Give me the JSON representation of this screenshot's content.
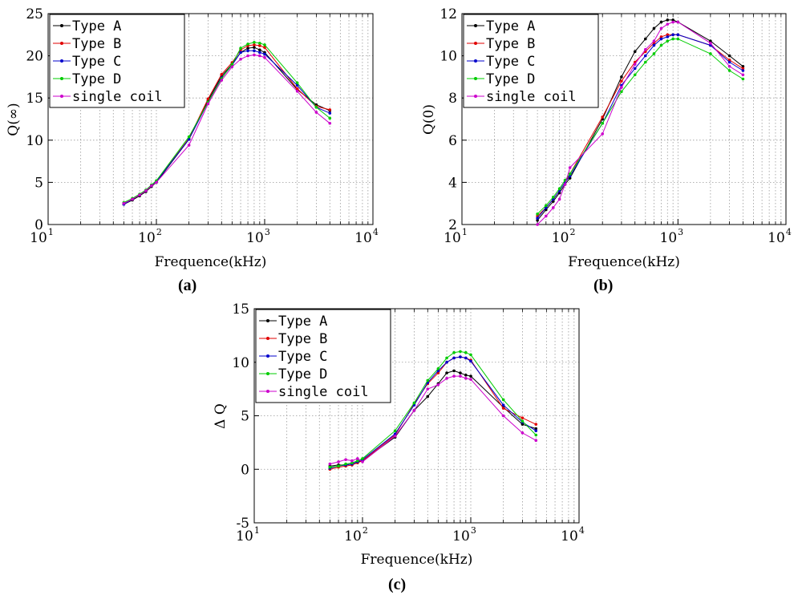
{
  "chart_data": [
    {
      "type": "line",
      "panel": "a",
      "caption": "(a)",
      "xlabel": "Frequence(kHz)",
      "ylabel": "Q(∞)",
      "xscale": "log",
      "xlim": [
        10,
        10000
      ],
      "ylim": [
        0,
        25
      ],
      "xticks": [
        {
          "base": "10",
          "exp": "1",
          "value": 10
        },
        {
          "base": "10",
          "exp": "2",
          "value": 100
        },
        {
          "base": "10",
          "exp": "3",
          "value": 1000
        },
        {
          "base": "10",
          "exp": "4",
          "value": 10000
        }
      ],
      "yticks": [
        "0",
        "5",
        "10",
        "15",
        "20",
        "25"
      ],
      "legend_position": "top-left",
      "x": [
        50,
        60,
        70,
        80,
        90,
        100,
        200,
        300,
        400,
        500,
        600,
        700,
        800,
        900,
        1000,
        2000,
        3000,
        4000
      ],
      "series": [
        {
          "name": "Type A",
          "color": "#000000",
          "values": [
            2.4,
            2.9,
            3.4,
            3.9,
            4.5,
            5.0,
            10.1,
            14.7,
            17.6,
            19.0,
            20.4,
            20.9,
            21.0,
            20.7,
            20.4,
            16.0,
            14.2,
            13.5
          ]
        },
        {
          "name": "Type B",
          "color": "#e00000",
          "values": [
            2.5,
            3.0,
            3.5,
            4.0,
            4.6,
            5.1,
            10.2,
            14.9,
            17.8,
            19.2,
            20.7,
            21.2,
            21.3,
            21.2,
            21.0,
            16.1,
            14.0,
            13.6
          ]
        },
        {
          "name": "Type C",
          "color": "#0000cc",
          "values": [
            2.4,
            3.0,
            3.5,
            4.0,
            4.6,
            5.1,
            10.1,
            14.5,
            17.4,
            18.9,
            20.4,
            20.6,
            20.6,
            20.4,
            20.2,
            16.5,
            13.9,
            13.2
          ]
        },
        {
          "name": "Type D",
          "color": "#00cc00",
          "values": [
            2.6,
            3.1,
            3.6,
            4.1,
            4.7,
            5.2,
            10.4,
            14.5,
            17.3,
            19.0,
            20.9,
            21.4,
            21.6,
            21.5,
            21.3,
            16.8,
            13.9,
            12.6
          ]
        },
        {
          "name": "single coil",
          "color": "#cc00cc",
          "values": [
            2.5,
            3.0,
            3.5,
            4.0,
            4.6,
            5.0,
            9.4,
            14.3,
            17.1,
            18.7,
            19.6,
            20.0,
            20.1,
            20.0,
            19.8,
            15.8,
            13.3,
            12.0
          ]
        }
      ]
    },
    {
      "type": "line",
      "panel": "b",
      "caption": "(b)",
      "xlabel": "Frequence(kHz)",
      "ylabel": "Q(0)",
      "xscale": "log",
      "xlim": [
        10,
        10000
      ],
      "ylim": [
        2,
        12
      ],
      "xticks": [
        {
          "base": "10",
          "exp": "1",
          "value": 10
        },
        {
          "base": "10",
          "exp": "2",
          "value": 100
        },
        {
          "base": "10",
          "exp": "3",
          "value": 1000
        },
        {
          "base": "10",
          "exp": "4",
          "value": 10000
        }
      ],
      "yticks": [
        "2",
        "4",
        "6",
        "8",
        "10",
        "12"
      ],
      "legend_position": "top-left",
      "x": [
        50,
        60,
        70,
        80,
        90,
        100,
        200,
        300,
        400,
        500,
        600,
        700,
        800,
        900,
        1000,
        2000,
        3000,
        4000
      ],
      "series": [
        {
          "name": "Type A",
          "color": "#000000",
          "values": [
            2.2,
            2.7,
            3.1,
            3.5,
            3.9,
            4.2,
            7.0,
            9.0,
            10.2,
            10.8,
            11.3,
            11.6,
            11.7,
            11.7,
            11.6,
            10.7,
            10.0,
            9.5
          ]
        },
        {
          "name": "Type B",
          "color": "#e00000",
          "values": [
            2.4,
            2.8,
            3.2,
            3.6,
            4.0,
            4.4,
            7.1,
            8.8,
            9.7,
            10.2,
            10.6,
            10.9,
            11.0,
            11.0,
            11.0,
            10.5,
            9.8,
            9.4
          ]
        },
        {
          "name": "Type C",
          "color": "#0000cc",
          "values": [
            2.3,
            2.8,
            3.2,
            3.6,
            4.0,
            4.3,
            6.8,
            8.6,
            9.4,
            10.0,
            10.5,
            10.8,
            10.9,
            11.0,
            11.0,
            10.5,
            9.7,
            9.3
          ]
        },
        {
          "name": "Type D",
          "color": "#00cc00",
          "values": [
            2.5,
            2.9,
            3.3,
            3.7,
            4.1,
            4.4,
            6.8,
            8.3,
            9.1,
            9.7,
            10.1,
            10.5,
            10.7,
            10.8,
            10.8,
            10.1,
            9.3,
            8.9
          ]
        },
        {
          "name": "single coil",
          "color": "#cc00cc",
          "values": [
            2.0,
            2.4,
            2.8,
            3.2,
            3.9,
            4.7,
            6.3,
            8.5,
            9.6,
            10.3,
            10.7,
            11.3,
            11.5,
            11.6,
            11.6,
            10.6,
            9.5,
            9.1
          ]
        }
      ]
    },
    {
      "type": "line",
      "panel": "c",
      "caption": "(c)",
      "xlabel": "Frequence(kHz)",
      "ylabel": "Δ Q",
      "xscale": "log",
      "xlim": [
        10,
        10000
      ],
      "ylim": [
        -5,
        15
      ],
      "xticks": [
        {
          "base": "10",
          "exp": "1",
          "value": 10
        },
        {
          "base": "10",
          "exp": "2",
          "value": 100
        },
        {
          "base": "10",
          "exp": "3",
          "value": 1000
        },
        {
          "base": "10",
          "exp": "4",
          "value": 10000
        }
      ],
      "yticks": [
        "-5",
        "0",
        "5",
        "10",
        "15"
      ],
      "legend_position": "top-left",
      "x": [
        50,
        60,
        70,
        80,
        90,
        100,
        200,
        300,
        400,
        500,
        600,
        700,
        800,
        900,
        1000,
        2000,
        3000,
        4000
      ],
      "series": [
        {
          "name": "Type A",
          "color": "#000000",
          "values": [
            0.3,
            0.4,
            0.4,
            0.5,
            0.7,
            0.8,
            3.0,
            5.5,
            6.8,
            8.0,
            9.0,
            9.2,
            9.0,
            8.8,
            8.7,
            5.8,
            4.2,
            3.8
          ]
        },
        {
          "name": "Type B",
          "color": "#e00000",
          "values": [
            0.0,
            0.2,
            0.3,
            0.4,
            0.6,
            0.8,
            3.2,
            6.1,
            8.0,
            9.0,
            10.0,
            10.4,
            10.5,
            10.4,
            10.2,
            5.7,
            4.8,
            4.2
          ]
        },
        {
          "name": "Type C",
          "color": "#0000cc",
          "values": [
            0.1,
            0.3,
            0.4,
            0.5,
            0.7,
            0.9,
            3.3,
            6.0,
            8.1,
            9.2,
            10.0,
            10.4,
            10.5,
            10.4,
            10.1,
            6.0,
            4.4,
            3.6
          ]
        },
        {
          "name": "Type D",
          "color": "#00cc00",
          "values": [
            0.2,
            0.3,
            0.5,
            0.6,
            0.8,
            1.0,
            3.6,
            6.2,
            8.3,
            9.4,
            10.4,
            10.9,
            11.0,
            10.9,
            10.7,
            6.5,
            4.5,
            3.2
          ]
        },
        {
          "name": "single coil",
          "color": "#cc00cc",
          "values": [
            0.5,
            0.7,
            0.9,
            0.8,
            1.0,
            0.7,
            3.1,
            5.5,
            7.5,
            7.9,
            8.5,
            8.7,
            8.7,
            8.5,
            8.4,
            5.0,
            3.4,
            2.7
          ]
        }
      ]
    }
  ]
}
